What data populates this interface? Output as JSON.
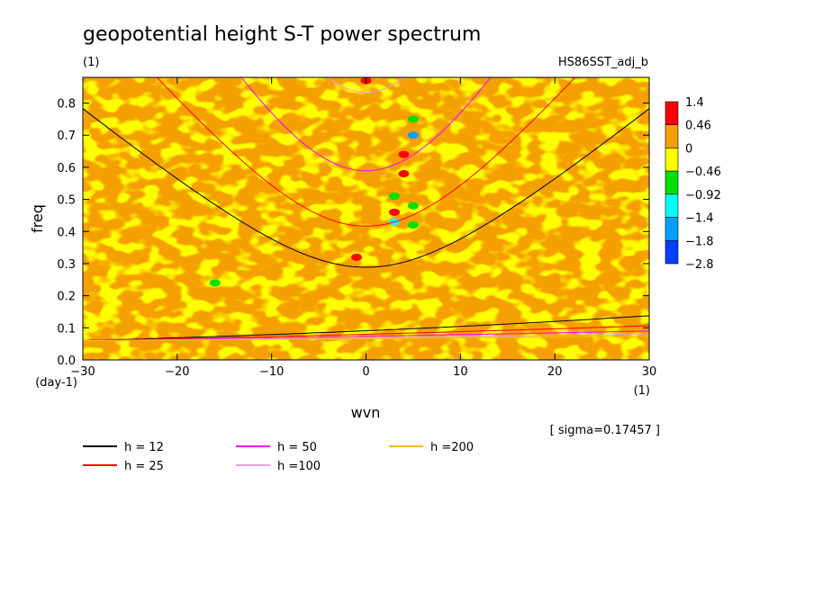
{
  "chart_data": {
    "type": "heatmap",
    "title": "geopotential height S-T power spectrum",
    "unit_label": "(1)",
    "dataset": "HS86SST_adj_b",
    "xlabel": "wvn",
    "ylabel": "freq",
    "x_unit": "(1)",
    "y_unit": "(day-1)",
    "xlim": [
      -30,
      30
    ],
    "ylim": [
      0,
      0.88
    ],
    "xticks": [
      "−30",
      "−20",
      "−10",
      "0",
      "10",
      "20",
      "30"
    ],
    "yticks": [
      "0.0",
      "0.1",
      "0.2",
      "0.3",
      "0.4",
      "0.5",
      "0.6",
      "0.7",
      "0.8"
    ],
    "note": "[ sigma=0.17457 ]",
    "colorbar": {
      "labels": [
        "1.4",
        "0.46",
        "0",
        "−0.46",
        "−0.92",
        "−1.4",
        "−1.8",
        "−2.8"
      ],
      "colors": [
        "#ff0000",
        "#f4a000",
        "#ffff00",
        "#00e000",
        "#00ffff",
        "#00a0ff",
        "#0040ff"
      ]
    },
    "series": [
      {
        "name": "h = 12",
        "h": 12,
        "color": "#000000"
      },
      {
        "name": "h = 25",
        "h": 25,
        "color": "#ff0000"
      },
      {
        "name": "h = 50",
        "h": 50,
        "color": "#ff00ff"
      },
      {
        "name": "h =100",
        "h": 100,
        "color": "#e0a0e0"
      },
      {
        "name": "h =200",
        "h": 200,
        "color": "#f0c000"
      }
    ],
    "features": [
      {
        "wvn": 5,
        "freq": 0.7,
        "level": "−1.4"
      },
      {
        "wvn": 3,
        "freq": 0.43,
        "level": "−0.92"
      },
      {
        "wvn": 5,
        "freq": 0.75,
        "level": "−0.46"
      },
      {
        "wvn": 3,
        "freq": 0.51,
        "level": "−0.46"
      },
      {
        "wvn": 5,
        "freq": 0.48,
        "level": "−0.46"
      },
      {
        "wvn": 5,
        "freq": 0.42,
        "level": "−0.46"
      },
      {
        "wvn": -16,
        "freq": 0.24,
        "level": "−0.46"
      },
      {
        "wvn": 4,
        "freq": 0.58,
        "level": "1.4"
      },
      {
        "wvn": 3,
        "freq": 0.46,
        "level": "1.4"
      },
      {
        "wvn": 4,
        "freq": 0.64,
        "level": "1.4"
      },
      {
        "wvn": -1,
        "freq": 0.32,
        "level": "1.4"
      },
      {
        "wvn": 0,
        "freq": 0.87,
        "level": "1.4"
      }
    ]
  }
}
